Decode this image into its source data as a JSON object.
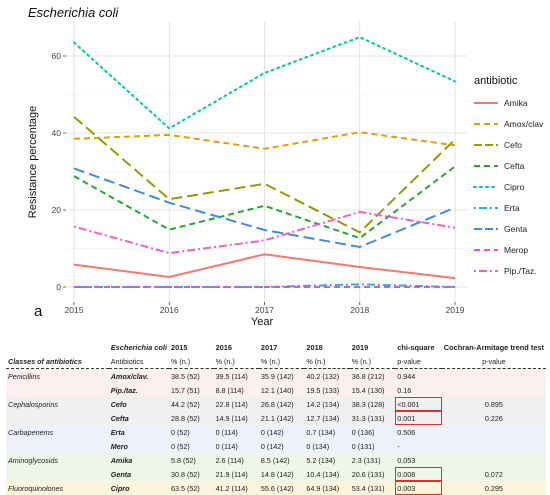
{
  "chart_data": {
    "type": "line",
    "title": "Escherichia coli",
    "xlabel": "Year",
    "ylabel": "Resistance percentage",
    "x": [
      2015,
      2016,
      2017,
      2018,
      2019
    ],
    "xticks": [
      "2015",
      "2016",
      "2017",
      "2018",
      "2019"
    ],
    "ylim": [
      0,
      67
    ],
    "yticks": [
      "0",
      "20",
      "40",
      "60"
    ],
    "grid": true,
    "legend_title": "antibiotic",
    "legend_position": "right",
    "panel_label": "a",
    "series": [
      {
        "name": "Amika",
        "color": "#F8766D",
        "dash": "solid",
        "values": [
          5.8,
          2.6,
          8.5,
          5.2,
          2.3
        ]
      },
      {
        "name": "Amox/clav",
        "color": "#E69F00",
        "dash": "dashed",
        "values": [
          38.5,
          39.5,
          35.9,
          40.2,
          36.8
        ]
      },
      {
        "name": "Cefo",
        "color": "#999900",
        "dash": "longdash",
        "values": [
          44.2,
          22.8,
          26.8,
          14.2,
          38.3
        ]
      },
      {
        "name": "Cefta",
        "color": "#1FAA2E",
        "dash": "dashed",
        "values": [
          28.8,
          14.9,
          21.1,
          12.7,
          31.3
        ]
      },
      {
        "name": "Cipro",
        "color": "#00C9A7",
        "dash": "dotted",
        "values": [
          63.5,
          41.2,
          55.6,
          64.9,
          53.4
        ]
      },
      {
        "name": "Erta",
        "color": "#22B6D9",
        "dash": "dotdash",
        "values": [
          0,
          0,
          0,
          0.7,
          0
        ]
      },
      {
        "name": "Genta",
        "color": "#3B8EE0",
        "dash": "longdash",
        "values": [
          30.8,
          21.9,
          14.8,
          10.4,
          20.6
        ]
      },
      {
        "name": "Merop",
        "color": "#E14FE6",
        "dash": "dashed",
        "values": [
          0,
          0,
          0,
          0,
          0
        ]
      },
      {
        "name": "Pip./Taz.",
        "color": "#F25EC9",
        "dash": "dotdash",
        "values": [
          15.7,
          8.8,
          12.1,
          19.5,
          15.4
        ]
      }
    ]
  },
  "table": {
    "organism": "Escherichia coli",
    "header_classes": "Classes of antibiotics",
    "header_antibiotics": "Antibiotics",
    "years": [
      "2015",
      "2016",
      "2017",
      "2018",
      "2019"
    ],
    "unit_label": "% (n.)",
    "chi_header": "chi-square",
    "chi_sub": "p-value",
    "trend_header": "Cochran-Armitage trend test",
    "trend_sub": "p-value",
    "rows": [
      {
        "cls": "Penicillins",
        "drug": "Amox/clav.",
        "vals": [
          "38.5 (52)",
          "39.5 (114)",
          "35.9 (142)",
          "40.2 (132)",
          "36.8 (212)"
        ],
        "chi": "0.944",
        "trend": "",
        "bg": "#FBEFEF",
        "boxed": false
      },
      {
        "cls": "",
        "drug": "Pip./taz.",
        "vals": [
          "15.7 (51)",
          "8.8 (114)",
          "12.1 (140)",
          "19.5 (133)",
          "15.4 (130)"
        ],
        "chi": "0.16",
        "trend": "",
        "bg": "#FBEFEF",
        "boxed": false
      },
      {
        "cls": "Cephalosporins",
        "drug": "Cefo",
        "vals": [
          "44.2 (52)",
          "22.8 (114)",
          "26.8 (142)",
          "14.2 (134)",
          "38.3 (128)"
        ],
        "chi": "<0.001",
        "trend": "0.895",
        "bg": "#F0F0F0",
        "boxed": true
      },
      {
        "cls": "",
        "drug": "Cefta",
        "vals": [
          "28.8 (52)",
          "14.9 (114)",
          "21.1 (142)",
          "12.7 (134)",
          "31.3 (131)"
        ],
        "chi": "0.001",
        "trend": "0.226",
        "bg": "#F0F0F0",
        "boxed": true
      },
      {
        "cls": "Carbapenems",
        "drug": "Erta",
        "vals": [
          "0 (52)",
          "0 (114)",
          "0 (142)",
          "0.7 (134)",
          "0 (136)"
        ],
        "chi": "0.506",
        "trend": "",
        "bg": "#EEF0FB",
        "boxed": false
      },
      {
        "cls": "",
        "drug": "Mero",
        "vals": [
          "0 (52)",
          "0 (114)",
          "0 (142)",
          "0 (134)",
          "0 (131)"
        ],
        "chi": "-",
        "trend": "",
        "bg": "#EEF0FB",
        "boxed": false
      },
      {
        "cls": "Aminoglycosids",
        "drug": "Amika",
        "vals": [
          "5.8 (52)",
          "2.6 (114)",
          "8.5 (142)",
          "5.2 (134)",
          "2.3 (131)"
        ],
        "chi": "0.053",
        "trend": "",
        "bg": "#EEF6E8",
        "boxed": false
      },
      {
        "cls": "",
        "drug": "Genta",
        "vals": [
          "30.8 (52)",
          "21.9 (114)",
          "14.8 (142)",
          "10.4 (134)",
          "20.6 (131)"
        ],
        "chi": "0.008",
        "trend": "0.072",
        "bg": "#EEF6E8",
        "boxed": true
      },
      {
        "cls": "Fluoroquinolones",
        "drug": "Cipro",
        "vals": [
          "63.5 (52)",
          "41.2 (114)",
          "55.6 (142)",
          "64.9 (134)",
          "53.4 (131)"
        ],
        "chi": "0.003",
        "trend": "0.295",
        "bg": "#FDF4DC",
        "boxed": true
      }
    ]
  }
}
